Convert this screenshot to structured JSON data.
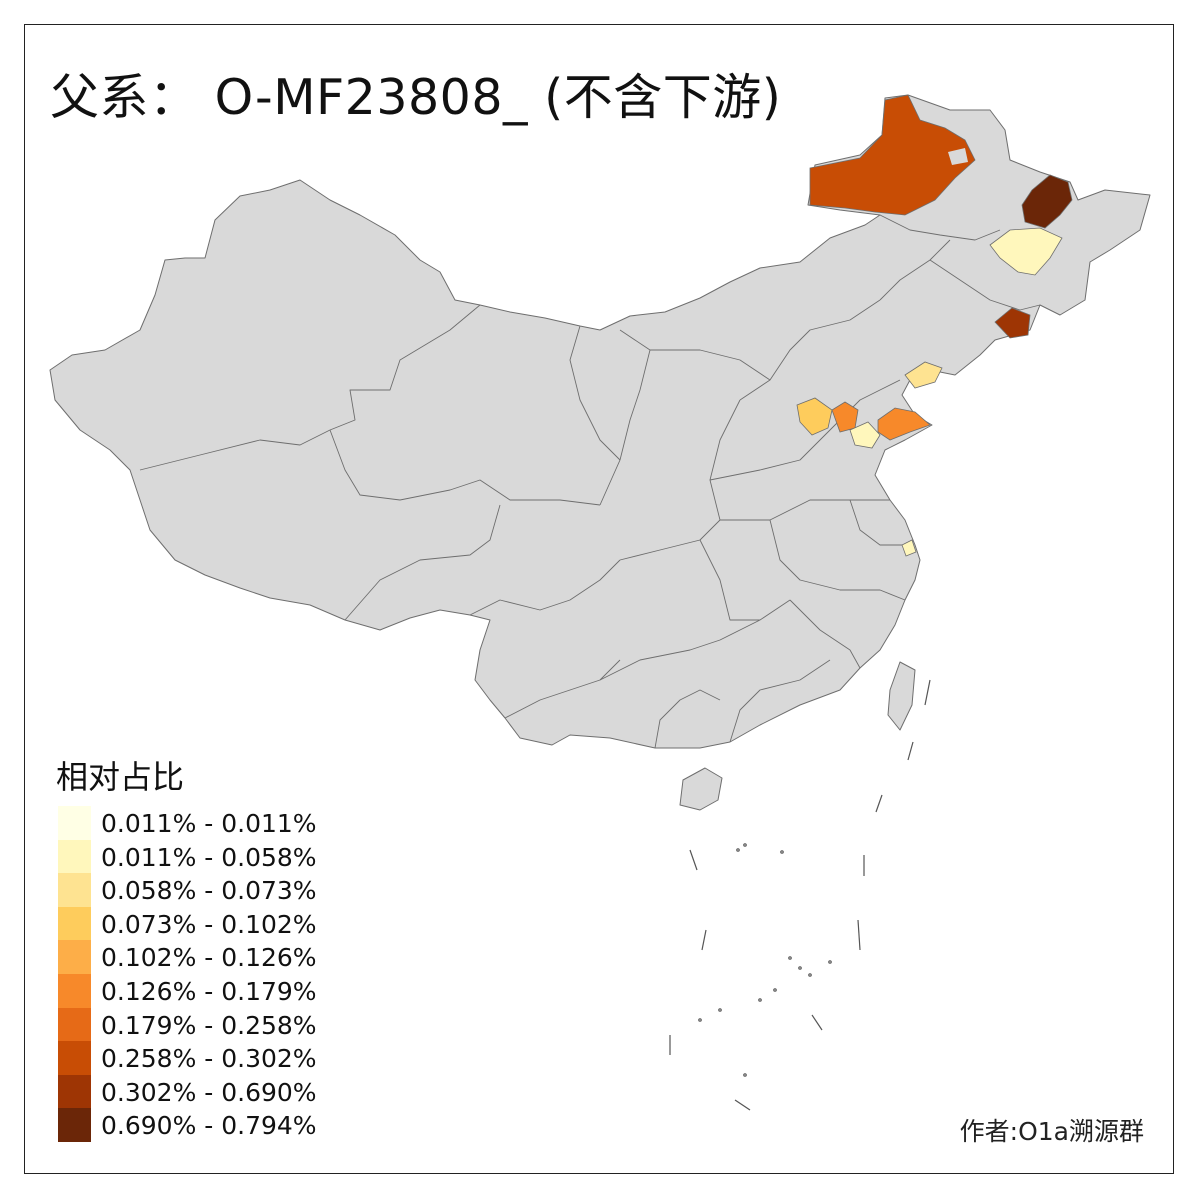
{
  "title": "父系： O-MF23808_ (不含下游)",
  "legend": {
    "title": "相对占比",
    "items": [
      {
        "label": "0.011% - 0.011%",
        "color": "#FFFFE5"
      },
      {
        "label": "0.011% - 0.058%",
        "color": "#FFF7BC"
      },
      {
        "label": "0.058% - 0.073%",
        "color": "#FEE391"
      },
      {
        "label": "0.073% - 0.102%",
        "color": "#FECC5C"
      },
      {
        "label": "0.102% - 0.126%",
        "color": "#FDAE48"
      },
      {
        "label": "0.126% - 0.179%",
        "color": "#F7892A"
      },
      {
        "label": "0.179% - 0.258%",
        "color": "#E66A17"
      },
      {
        "label": "0.258% - 0.302%",
        "color": "#C84D05"
      },
      {
        "label": "0.302% - 0.690%",
        "color": "#9E3504"
      },
      {
        "label": "0.690% - 0.794%",
        "color": "#6B2608"
      }
    ]
  },
  "author": "作者:O1a溯源群",
  "map_colors": {
    "base_fill": "#D9D9D9",
    "border": "#6E6E6E"
  }
}
